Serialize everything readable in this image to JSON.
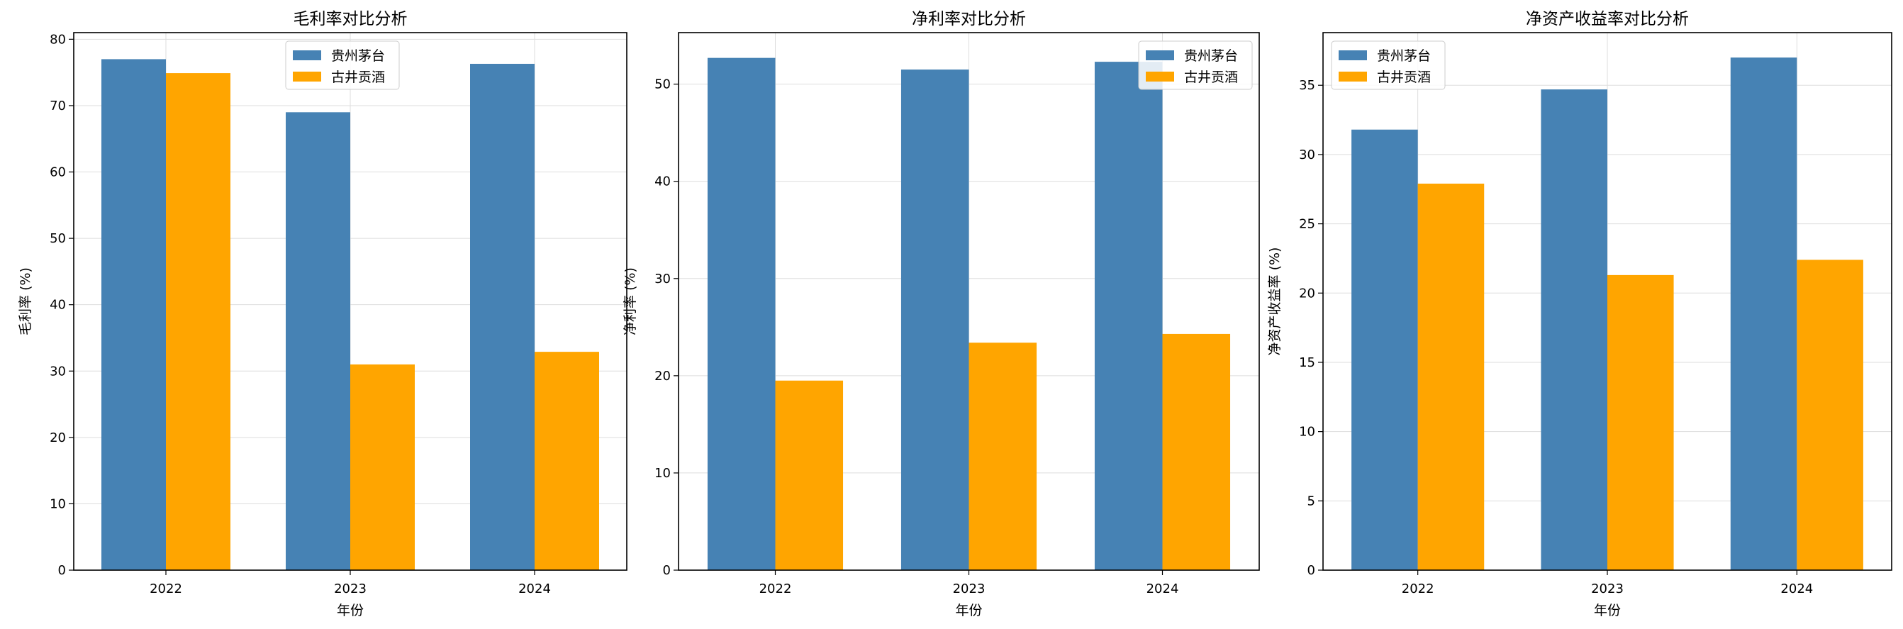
{
  "chart_data": [
    {
      "type": "bar",
      "title": "毛利率对比分析",
      "xlabel": "年份",
      "ylabel": "毛利率 (%)",
      "categories": [
        "2022",
        "2023",
        "2024"
      ],
      "series": [
        {
          "name": "贵州茅台",
          "values": [
            77.0,
            69.0,
            76.3
          ]
        },
        {
          "name": "古井贡酒",
          "values": [
            74.9,
            31.0,
            32.9
          ]
        }
      ],
      "ylim": [
        0,
        81
      ],
      "yticks": [
        0,
        10,
        20,
        30,
        40,
        50,
        60,
        70,
        80
      ],
      "legend": "top-center",
      "grid": true
    },
    {
      "type": "bar",
      "title": "净利率对比分析",
      "xlabel": "年份",
      "ylabel": "净利率 (%)",
      "categories": [
        "2022",
        "2023",
        "2024"
      ],
      "series": [
        {
          "name": "贵州茅台",
          "values": [
            52.7,
            51.5,
            52.3
          ]
        },
        {
          "name": "古井贡酒",
          "values": [
            19.5,
            23.4,
            24.3
          ]
        }
      ],
      "ylim": [
        0,
        55.3
      ],
      "yticks": [
        0,
        10,
        20,
        30,
        40,
        50
      ],
      "legend": "top-right",
      "grid": true
    },
    {
      "type": "bar",
      "title": "净资产收益率对比分析",
      "xlabel": "年份",
      "ylabel": "净资产收益率 (%)",
      "categories": [
        "2022",
        "2023",
        "2024"
      ],
      "series": [
        {
          "name": "贵州茅台",
          "values": [
            31.8,
            34.7,
            37.0
          ]
        },
        {
          "name": "古井贡酒",
          "values": [
            27.9,
            21.3,
            22.4
          ]
        }
      ],
      "ylim": [
        0,
        38.8
      ],
      "yticks": [
        0,
        5,
        10,
        15,
        20,
        25,
        30,
        35
      ],
      "legend": "top-left",
      "grid": true
    }
  ],
  "colors": {
    "series": [
      "#4682b4",
      "#ffa500"
    ]
  }
}
